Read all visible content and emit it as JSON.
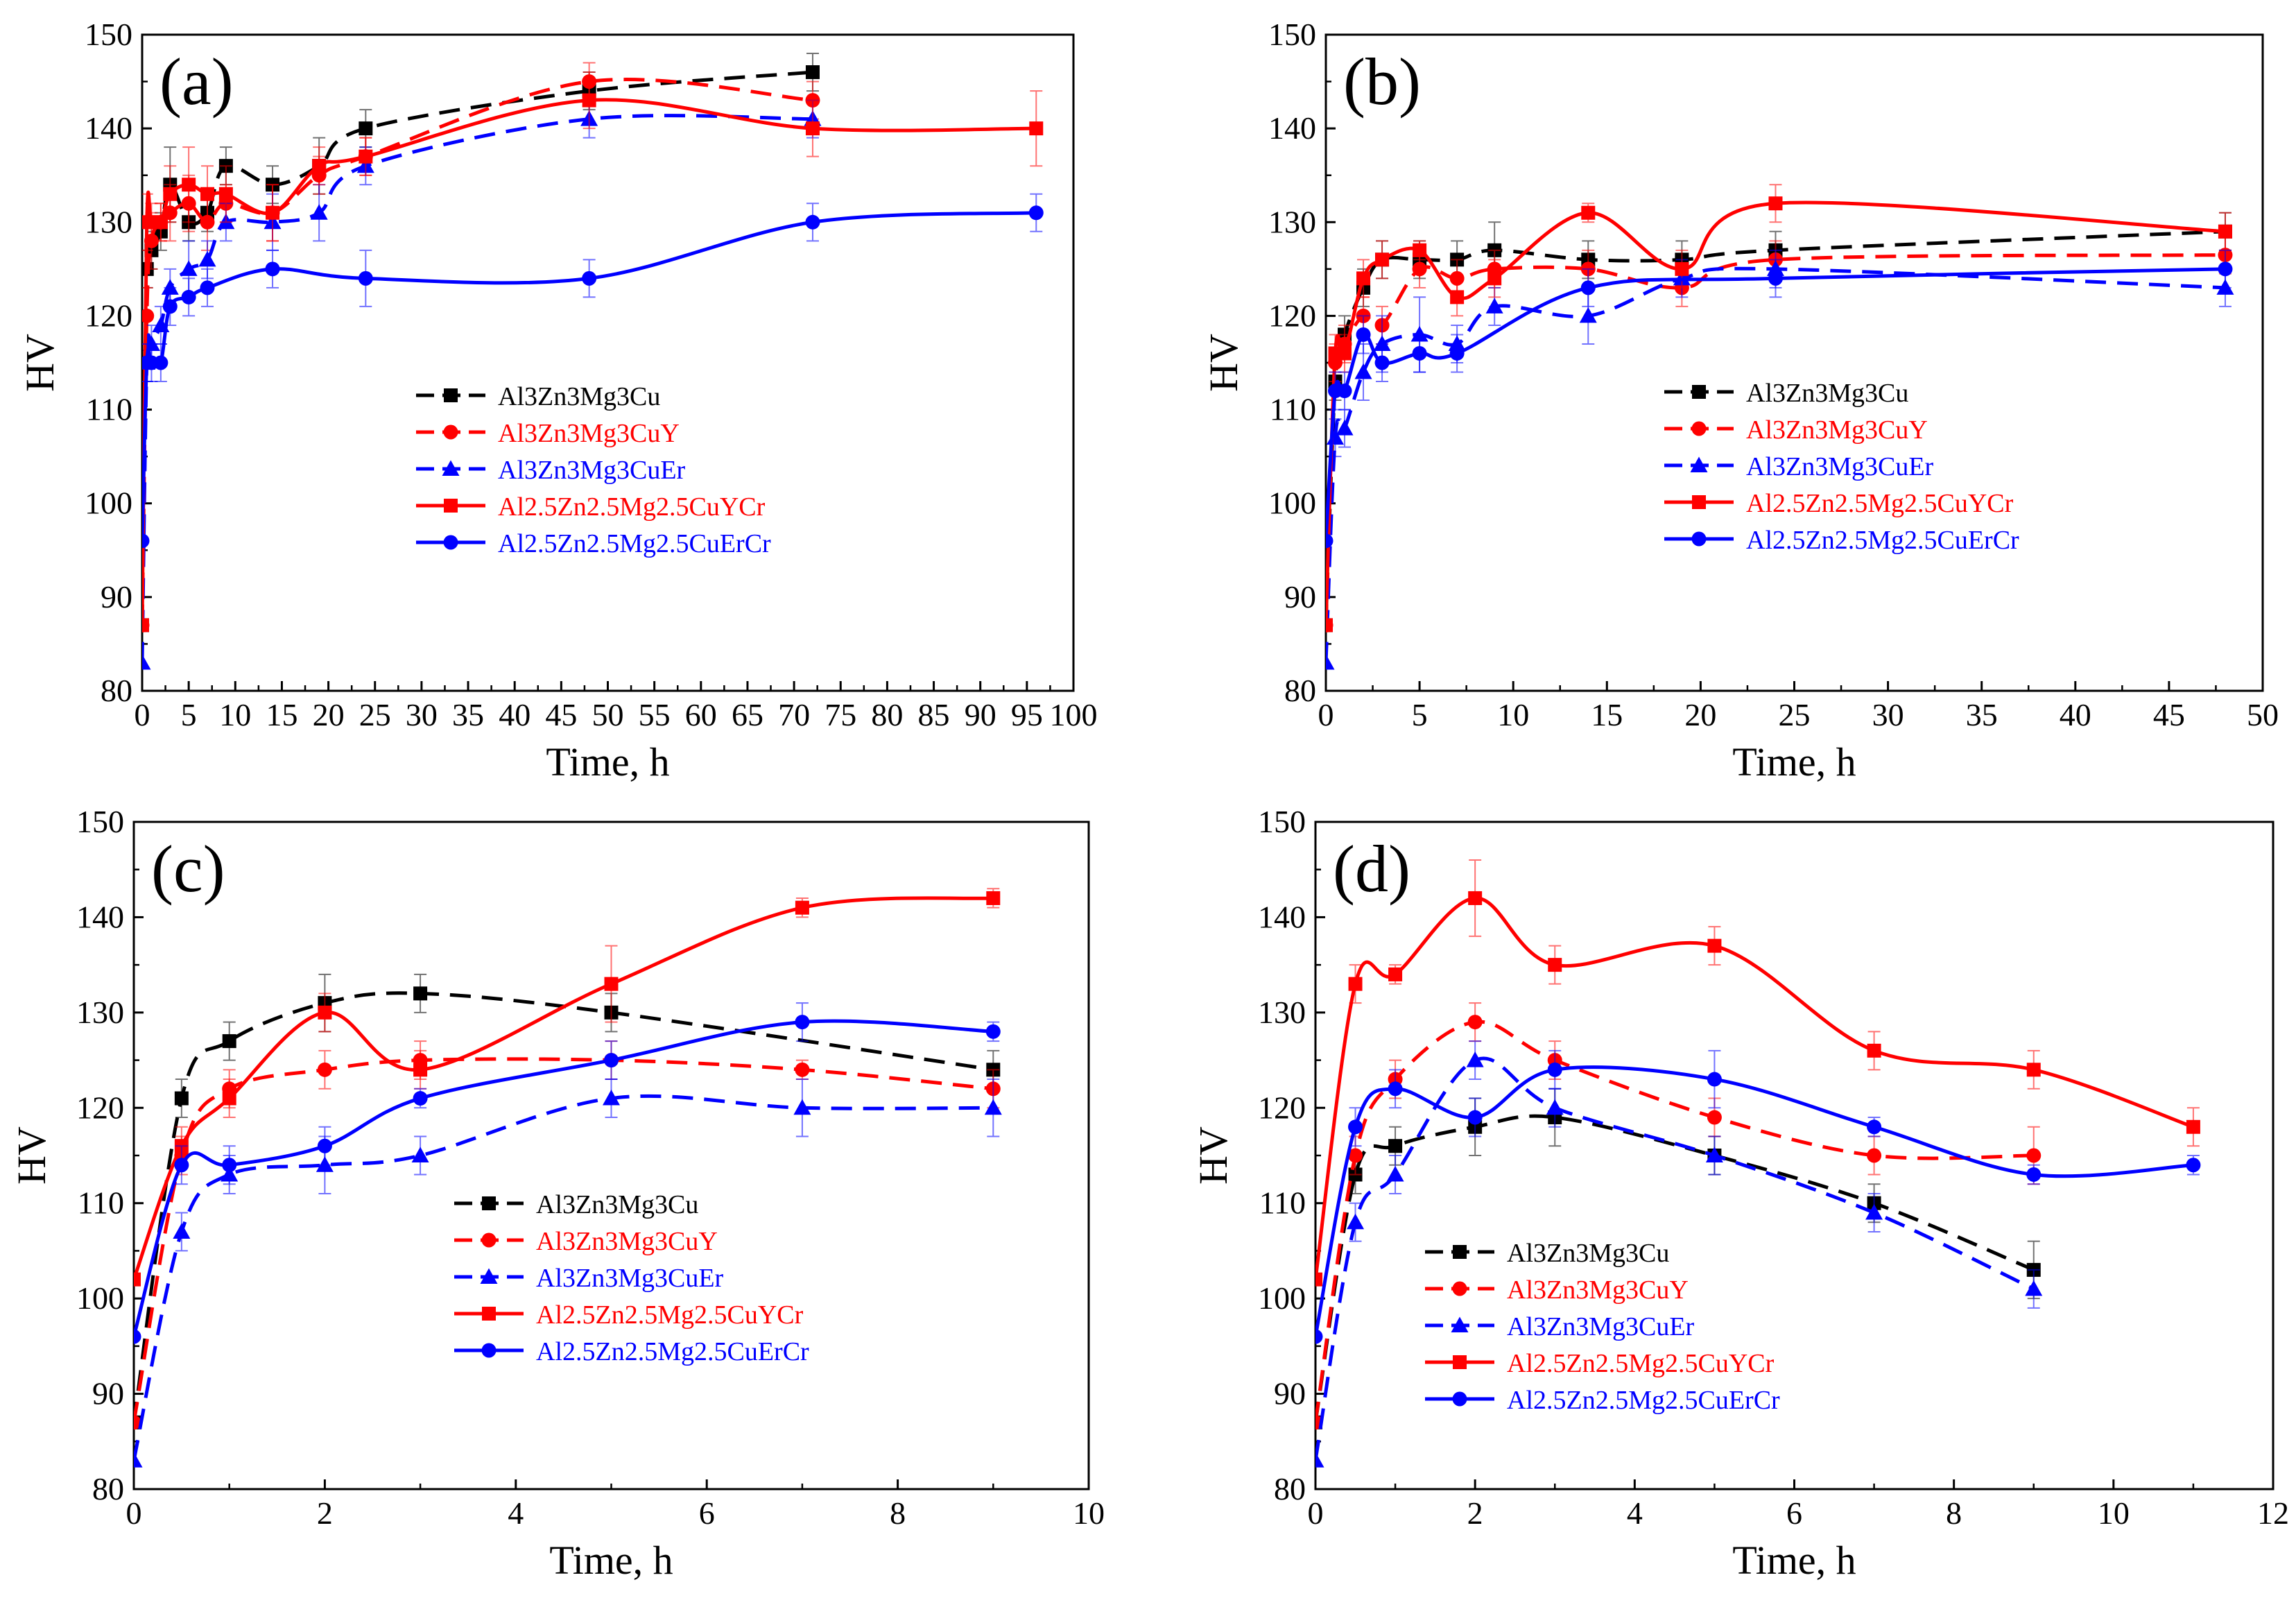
{
  "figure_title": "Age-hardening curves (HV vs. aging time) for five Al-Zn-Mg-Cu alloys",
  "colors": {
    "black": "#000000",
    "red": "#ff0000",
    "blue": "#0000ff"
  },
  "chart_data": [
    {
      "panel": "(a)",
      "type": "line",
      "xlabel": "Time, h",
      "ylabel": "HV",
      "xlim": [
        0,
        100
      ],
      "ylim": [
        80,
        150
      ],
      "xticks": [
        0,
        5,
        10,
        15,
        20,
        25,
        30,
        35,
        40,
        45,
        50,
        55,
        60,
        65,
        70,
        75,
        80,
        85,
        90,
        95,
        100
      ],
      "yticks": [
        80,
        90,
        100,
        110,
        120,
        130,
        140,
        150
      ],
      "grid": false,
      "legend_position": "center-right",
      "series": [
        {
          "name": "Al3Zn3Mg3Cu",
          "color": "#000000",
          "marker": "square",
          "dash": true,
          "x": [
            0,
            0.5,
            1,
            2,
            3,
            5,
            7,
            9,
            14,
            19,
            24,
            48,
            72
          ],
          "y": [
            87,
            125,
            127,
            129,
            134,
            130,
            131,
            136,
            134,
            136,
            140,
            144,
            146
          ],
          "err": [
            0,
            2,
            2,
            2,
            4,
            2,
            2,
            2,
            2,
            3,
            2,
            2,
            2
          ]
        },
        {
          "name": "Al3Zn3Mg3CuY",
          "color": "#ff0000",
          "marker": "circle",
          "dash": true,
          "x": [
            0,
            0.5,
            1,
            2,
            3,
            5,
            7,
            9,
            14,
            19,
            24,
            48,
            72
          ],
          "y": [
            87,
            120,
            128,
            130,
            131,
            132,
            130,
            132,
            131,
            135,
            137,
            145,
            143
          ],
          "err": [
            0,
            3,
            3,
            2,
            3,
            3,
            3,
            2,
            3,
            2,
            2,
            2,
            2
          ]
        },
        {
          "name": "Al3Zn3Mg3CuEr",
          "color": "#0000ff",
          "marker": "triangle",
          "dash": true,
          "x": [
            0,
            0.5,
            1,
            2,
            3,
            5,
            7,
            9,
            14,
            19,
            24,
            48,
            72
          ],
          "y": [
            83,
            115,
            117,
            119,
            123,
            125,
            126,
            130,
            130,
            131,
            136,
            141,
            141
          ],
          "err": [
            0,
            2,
            2,
            2,
            2,
            3,
            2,
            2,
            3,
            3,
            2,
            2,
            2
          ]
        },
        {
          "name": "Al2.5Zn2.5Mg2.5CuYCr",
          "color": "#ff0000",
          "marker": "square",
          "dash": false,
          "x": [
            0,
            0.5,
            1,
            2,
            3,
            5,
            7,
            9,
            14,
            19,
            24,
            48,
            72,
            96
          ],
          "y": [
            87,
            130,
            130,
            130,
            133,
            134,
            133,
            133,
            131,
            136,
            137,
            143,
            140,
            140
          ],
          "err": [
            0,
            3,
            2,
            2,
            3,
            4,
            3,
            3,
            3,
            2,
            2,
            3,
            3,
            4
          ]
        },
        {
          "name": "Al2.5Zn2.5Mg2.5CuErCr",
          "color": "#0000ff",
          "marker": "circle",
          "dash": false,
          "x": [
            0,
            0.5,
            1,
            2,
            3,
            5,
            7,
            14,
            24,
            48,
            72,
            96
          ],
          "y": [
            96,
            115,
            115,
            115,
            121,
            122,
            123,
            125,
            124,
            124,
            130,
            131
          ],
          "err": [
            0,
            2,
            2,
            2,
            2,
            2,
            2,
            2,
            3,
            2,
            2,
            2
          ]
        }
      ]
    },
    {
      "panel": "(b)",
      "type": "line",
      "xlabel": "Time, h",
      "ylabel": "HV",
      "xlim": [
        0,
        50
      ],
      "ylim": [
        80,
        150
      ],
      "xticks": [
        0,
        5,
        10,
        15,
        20,
        25,
        30,
        35,
        40,
        45,
        50
      ],
      "yticks": [
        80,
        90,
        100,
        110,
        120,
        130,
        140,
        150
      ],
      "grid": false,
      "legend_position": "center-right",
      "series": [
        {
          "name": "Al3Zn3Mg3Cu",
          "color": "#000000",
          "marker": "square",
          "dash": true,
          "x": [
            0,
            0.5,
            1,
            2,
            3,
            5,
            7,
            9,
            14,
            19,
            24,
            48
          ],
          "y": [
            87,
            113,
            118,
            123,
            126,
            126,
            126,
            127,
            126,
            126,
            127,
            129
          ],
          "err": [
            0,
            2,
            2,
            2,
            2,
            2,
            2,
            3,
            2,
            2,
            2,
            2
          ]
        },
        {
          "name": "Al3Zn3Mg3CuY",
          "color": "#ff0000",
          "marker": "circle",
          "dash": true,
          "x": [
            0,
            0.5,
            1,
            2,
            3,
            5,
            7,
            9,
            14,
            19,
            24,
            48
          ],
          "y": [
            87,
            115,
            117,
            120,
            119,
            125,
            124,
            125,
            125,
            123,
            126,
            126.5
          ],
          "err": [
            0,
            2,
            2,
            2,
            2,
            2,
            2,
            2,
            2,
            2,
            2,
            2
          ]
        },
        {
          "name": "Al3Zn3Mg3CuEr",
          "color": "#0000ff",
          "marker": "triangle",
          "dash": true,
          "x": [
            0,
            0.5,
            1,
            2,
            3,
            5,
            7,
            9,
            14,
            19,
            24,
            48
          ],
          "y": [
            83,
            107,
            108,
            114,
            117,
            118,
            117,
            121,
            120,
            124,
            125,
            123
          ],
          "err": [
            0,
            2,
            2,
            3,
            3,
            4,
            2,
            2,
            3,
            2,
            2,
            2
          ]
        },
        {
          "name": "Al2.5Zn2.5Mg2.5CuYCr",
          "color": "#ff0000",
          "marker": "square",
          "dash": false,
          "x": [
            0,
            0.5,
            1,
            2,
            3,
            5,
            7,
            9,
            14,
            19,
            24,
            48
          ],
          "y": [
            87,
            116,
            116,
            124,
            126,
            127,
            122,
            124,
            131,
            125,
            132,
            129
          ],
          "err": [
            0,
            2,
            2,
            2,
            2,
            1,
            2,
            2,
            1,
            2,
            2,
            2
          ]
        },
        {
          "name": "Al2.5Zn2.5Mg2.5CuErCr",
          "color": "#0000ff",
          "marker": "circle",
          "dash": false,
          "x": [
            0,
            0.5,
            1,
            2,
            3,
            5,
            7,
            14,
            24,
            48
          ],
          "y": [
            96,
            112,
            112,
            118,
            115,
            116,
            116,
            123,
            124,
            125
          ],
          "err": [
            0,
            2,
            2,
            2,
            2,
            2,
            2,
            2,
            2,
            2
          ]
        }
      ]
    },
    {
      "panel": "(c)",
      "type": "line",
      "xlabel": "Time, h",
      "ylabel": "HV",
      "xlim": [
        0,
        10
      ],
      "ylim": [
        80,
        150
      ],
      "xticks": [
        0,
        2,
        4,
        6,
        8,
        10
      ],
      "yticks": [
        80,
        90,
        100,
        110,
        120,
        130,
        140,
        150
      ],
      "grid": false,
      "legend_position": "center-right",
      "series": [
        {
          "name": "Al3Zn3Mg3Cu",
          "color": "#000000",
          "marker": "square",
          "dash": true,
          "x": [
            0,
            0.5,
            1,
            2,
            3,
            5,
            9
          ],
          "y": [
            87,
            121,
            127,
            131,
            132,
            130,
            124
          ],
          "err": [
            0,
            2,
            2,
            3,
            2,
            2,
            2
          ]
        },
        {
          "name": "Al3Zn3Mg3CuY",
          "color": "#ff0000",
          "marker": "circle",
          "dash": true,
          "x": [
            0,
            0.5,
            1,
            2,
            3,
            5,
            7,
            9
          ],
          "y": [
            87,
            115,
            122,
            124,
            125,
            125,
            124,
            122
          ],
          "err": [
            0,
            2,
            2,
            2,
            2,
            2,
            1,
            2
          ]
        },
        {
          "name": "Al3Zn3Mg3CuEr",
          "color": "#0000ff",
          "marker": "triangle",
          "dash": true,
          "x": [
            0,
            0.5,
            1,
            2,
            3,
            5,
            7,
            9
          ],
          "y": [
            83,
            107,
            113,
            114,
            115,
            121,
            120,
            120
          ],
          "err": [
            0,
            2,
            2,
            3,
            2,
            2,
            3,
            3
          ]
        },
        {
          "name": "Al2.5Zn2.5Mg2.5CuYCr",
          "color": "#ff0000",
          "marker": "square",
          "dash": false,
          "x": [
            0,
            0.5,
            1,
            2,
            3,
            5,
            7,
            9
          ],
          "y": [
            102,
            116,
            121,
            130,
            124,
            133,
            141,
            142
          ],
          "err": [
            0,
            2,
            2,
            2,
            2,
            4,
            1,
            1
          ]
        },
        {
          "name": "Al2.5Zn2.5Mg2.5CuErCr",
          "color": "#0000ff",
          "marker": "circle",
          "dash": false,
          "x": [
            0,
            0.5,
            1,
            2,
            3,
            5,
            7,
            9
          ],
          "y": [
            96,
            114,
            114,
            116,
            121,
            125,
            129,
            128
          ],
          "err": [
            0,
            2,
            2,
            2,
            1,
            2,
            2,
            1
          ]
        }
      ]
    },
    {
      "panel": "(d)",
      "type": "line",
      "xlabel": "Time, h",
      "ylabel": "HV",
      "xlim": [
        0,
        12
      ],
      "ylim": [
        80,
        150
      ],
      "xticks": [
        0,
        2,
        4,
        6,
        8,
        10,
        12
      ],
      "yticks": [
        80,
        90,
        100,
        110,
        120,
        130,
        140,
        150
      ],
      "grid": false,
      "legend_position": "bottom-center",
      "series": [
        {
          "name": "Al3Zn3Mg3Cu",
          "color": "#000000",
          "marker": "square",
          "dash": true,
          "x": [
            0,
            0.5,
            1,
            2,
            3,
            5,
            7,
            9
          ],
          "y": [
            87,
            113,
            116,
            118,
            119,
            115,
            110,
            103
          ],
          "err": [
            0,
            2,
            2,
            3,
            3,
            2,
            2,
            3
          ]
        },
        {
          "name": "Al3Zn3Mg3CuY",
          "color": "#ff0000",
          "marker": "circle",
          "dash": true,
          "x": [
            0,
            0.5,
            1,
            2,
            3,
            5,
            7,
            9
          ],
          "y": [
            87,
            115,
            123,
            129,
            125,
            119,
            115,
            115
          ],
          "err": [
            0,
            2,
            2,
            2,
            2,
            2,
            2,
            3
          ]
        },
        {
          "name": "Al3Zn3Mg3CuEr",
          "color": "#0000ff",
          "marker": "triangle",
          "dash": true,
          "x": [
            0,
            0.5,
            1,
            2,
            3,
            5,
            7,
            9
          ],
          "y": [
            83,
            108,
            113,
            125,
            120,
            115,
            109,
            101
          ],
          "err": [
            0,
            2,
            2,
            2,
            2,
            2,
            2,
            2
          ]
        },
        {
          "name": "Al2.5Zn2.5Mg2.5CuYCr",
          "color": "#ff0000",
          "marker": "square",
          "dash": false,
          "x": [
            0,
            0.5,
            1,
            2,
            3,
            5,
            7,
            9,
            11
          ],
          "y": [
            102,
            133,
            134,
            142,
            135,
            137,
            126,
            124,
            118
          ],
          "err": [
            0,
            2,
            1,
            4,
            2,
            2,
            2,
            2,
            2
          ]
        },
        {
          "name": "Al2.5Zn2.5Mg2.5CuErCr",
          "color": "#0000ff",
          "marker": "circle",
          "dash": false,
          "x": [
            0,
            0.5,
            1,
            2,
            3,
            5,
            7,
            9,
            11
          ],
          "y": [
            96,
            118,
            122,
            119,
            124,
            123,
            118,
            113,
            114
          ],
          "err": [
            0,
            2,
            2,
            2,
            2,
            3,
            1,
            1,
            1
          ]
        }
      ]
    }
  ]
}
